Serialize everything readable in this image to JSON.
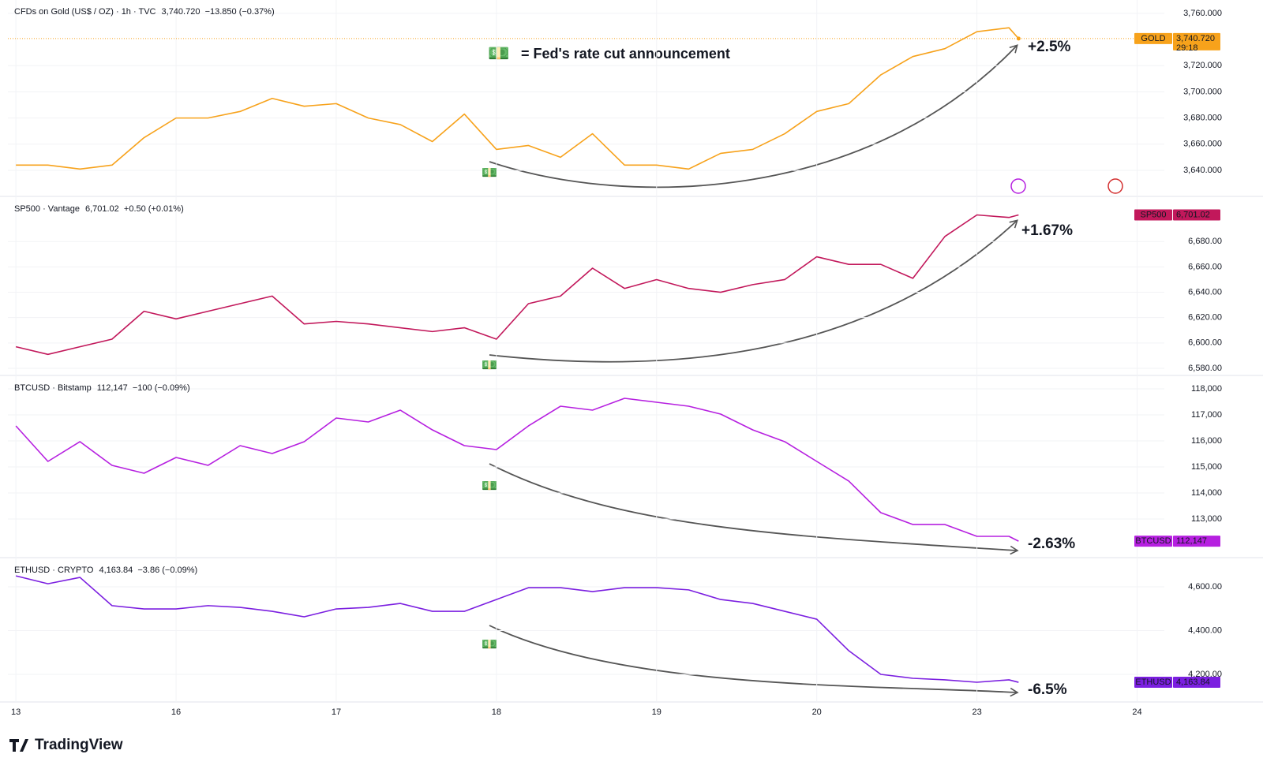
{
  "chart_data": {
    "type": "line",
    "x": [
      0,
      0.2,
      0.4,
      0.6,
      0.8,
      1,
      1.2,
      1.4,
      1.6,
      1.8,
      2,
      2.2,
      2.4,
      2.6,
      2.8,
      3,
      3.2,
      3.4,
      3.6,
      3.8,
      4,
      4.2,
      4.4,
      4.6,
      4.8,
      5,
      5.2,
      5.4,
      5.6,
      5.8,
      6,
      6.2,
      6.26
    ],
    "xlim": [
      -0.05,
      7.17
    ],
    "xticks": [
      {
        "value": 0,
        "label": "13"
      },
      {
        "value": 1,
        "label": "16"
      },
      {
        "value": 2,
        "label": "17"
      },
      {
        "value": 3,
        "label": "18"
      },
      {
        "value": 4,
        "label": "19"
      },
      {
        "value": 5,
        "label": "20"
      },
      {
        "value": 6,
        "label": "23"
      },
      {
        "value": 7,
        "label": "24"
      }
    ],
    "grid": true,
    "note_icon": "💵",
    "note": "= Fed's rate cut announcement",
    "brand": "TradingView",
    "series": [
      {
        "name": "CFDs on Gold (US$ / OZ) · 1h · TVC",
        "quote": "3,740.720  −13.850 (−0.37%)",
        "color": "#f7a21b",
        "values": [
          3644,
          3644,
          3641,
          3644,
          3665,
          3680,
          3680,
          3685,
          3695,
          3689,
          3691,
          3680,
          3675,
          3662,
          3683,
          3656,
          3659,
          3650,
          3668,
          3644,
          3644,
          3641,
          3653,
          3656,
          3668,
          3685,
          3691,
          3713,
          3727,
          3733,
          3746,
          3749,
          3740.72
        ],
        "ylim": [
          3620.7,
          3770.2
        ],
        "yticks": [
          {
            "value": 3640,
            "label": "3,640.000"
          },
          {
            "value": 3660,
            "label": "3,660.000"
          },
          {
            "value": 3680,
            "label": "3,680.000"
          },
          {
            "value": 3700,
            "label": "3,700.000"
          },
          {
            "value": 3720,
            "label": "3,720.000"
          },
          {
            "value": 3760,
            "label": "3,760.000"
          }
        ],
        "last": {
          "value": 3740.72,
          "label": "3,740.720"
        },
        "symbol": "GOLD",
        "countdown": "29:18",
        "change_label": "+2.5%"
      },
      {
        "name": "SP500 · Vantage",
        "quote": "6,701.02  +0.50 (+0.01%)",
        "color": "#c2185b",
        "values": [
          6597,
          6591,
          6597,
          6603,
          6625,
          6619,
          6625,
          6631,
          6637,
          6615,
          6617,
          6615,
          6612,
          6609,
          6612,
          6603,
          6631,
          6637,
          6659,
          6643,
          6650,
          6643,
          6640,
          6646,
          6650,
          6668,
          6662,
          6662,
          6651,
          6684,
          6701,
          6699,
          6701.02
        ],
        "ylim": [
          6575,
          6715
        ],
        "yticks": [
          {
            "value": 6580,
            "label": "6,580.00"
          },
          {
            "value": 6600,
            "label": "6,600.00"
          },
          {
            "value": 6620,
            "label": "6,620.00"
          },
          {
            "value": 6640,
            "label": "6,640.00"
          },
          {
            "value": 6660,
            "label": "6,660.00"
          },
          {
            "value": 6680,
            "label": "6,680.00"
          }
        ],
        "last": {
          "value": 6701.02,
          "label": "6,701.02"
        },
        "symbol": "SP500",
        "change_label": "+1.67%"
      },
      {
        "name": "BTCUSD · Bitstamp",
        "quote": "112,147  −100 (−0.09%)",
        "color": "#b620e0",
        "values": [
          116576,
          115212,
          115970,
          115061,
          114758,
          115364,
          115061,
          115818,
          115515,
          115970,
          116879,
          116727,
          117182,
          116424,
          115818,
          115667,
          116576,
          117333,
          117182,
          117636,
          117485,
          117333,
          117030,
          116424,
          115970,
          115212,
          114455,
          113242,
          112788,
          112788,
          112333,
          112333,
          112147
        ],
        "ylim": [
          111545,
          118485
        ],
        "yticks": [
          {
            "value": 113000,
            "label": "113,000"
          },
          {
            "value": 114000,
            "label": "114,000"
          },
          {
            "value": 115000,
            "label": "115,000"
          },
          {
            "value": 116000,
            "label": "116,000"
          },
          {
            "value": 117000,
            "label": "117,000"
          },
          {
            "value": 118000,
            "label": "118,000"
          }
        ],
        "last": {
          "value": 112147,
          "label": "112,147"
        },
        "symbol": "BTCUSD",
        "change_label": "-2.63%"
      },
      {
        "name": "ETHUSD · CRYPTO",
        "quote": "4,163.84  −3.86 (−0.09%)",
        "color": "#7b1fe0",
        "values": [
          4650,
          4614,
          4643,
          4514,
          4499,
          4499,
          4514,
          4506,
          4488,
          4463,
          4499,
          4506,
          4524,
          4488,
          4488,
          4542,
          4596,
          4596,
          4578,
          4596,
          4596,
          4586,
          4542,
          4524,
          4488,
          4452,
          4308,
          4200,
          4182,
          4175,
          4164,
          4175,
          4163.84
        ],
        "ylim": [
          4073.9,
          4729.7
        ],
        "yticks": [
          {
            "value": 4200,
            "label": "4,200.00"
          },
          {
            "value": 4400,
            "label": "4,400.00"
          },
          {
            "value": 4600,
            "label": "4,600.00"
          }
        ],
        "last": {
          "value": 4163.84,
          "label": "4,163.84"
        },
        "symbol": "ETHUSD",
        "change_label": "-6.5%"
      }
    ]
  }
}
